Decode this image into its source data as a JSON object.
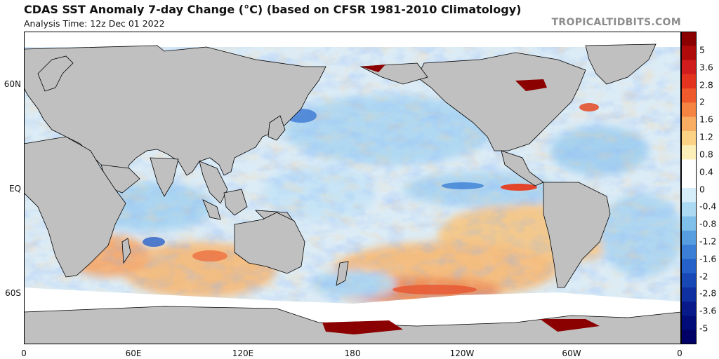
{
  "header": {
    "title": "CDAS SST Anomaly 7-day Change (°C) (based on CFSR 1981-2010 Climatology)",
    "analysis_time": "Analysis Time: 12z Dec 01 2022",
    "credit": "TROPICALTIDBITS.COM"
  },
  "map": {
    "projection": "equirectangular, 0° to 360° longitude",
    "lat_labels": [
      "60N",
      "EQ",
      "60S"
    ],
    "lon_labels": [
      "0",
      "60E",
      "120E",
      "180",
      "120W",
      "60W",
      "0"
    ]
  },
  "colorbar": {
    "labels": [
      "5",
      "3.6",
      "2.8",
      "2",
      "1.6",
      "1.2",
      "0.8",
      "0.4",
      "0",
      "-0.4",
      "-0.8",
      "-1.2",
      "-1.6",
      "-2",
      "-2.8",
      "-3.6",
      "-5"
    ],
    "colors": [
      "#8b0000",
      "#b00a0a",
      "#d11d1d",
      "#e4341f",
      "#ef5a2c",
      "#f58442",
      "#f9ad62",
      "#fcd385",
      "#fdefb8",
      "#ffffff",
      "#ffffff",
      "#d6eef9",
      "#acdaf2",
      "#7fc0ea",
      "#579ee0",
      "#3b7fd6",
      "#2461c8",
      "#1848b6",
      "#0f30a0",
      "#081a8a",
      "#020c78",
      "#000066"
    ]
  },
  "style": {
    "land": "#c0c0c0",
    "ice": "#ffffff",
    "warm": "#f6a35e",
    "cool": "#8cc9ee"
  }
}
